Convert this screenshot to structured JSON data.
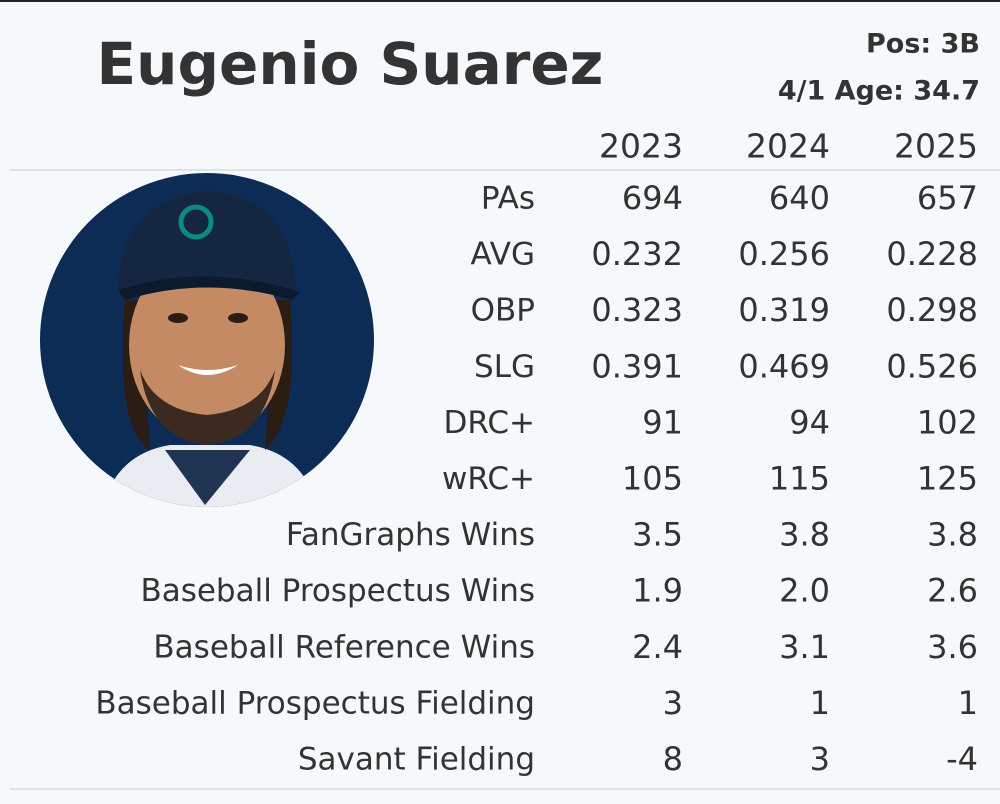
{
  "header": {
    "name": "Eugenio Suarez",
    "position": "Pos: 3B",
    "age": "4/1 Age: 34.7"
  },
  "table": {
    "columns": [
      "2023",
      "2024",
      "2025"
    ],
    "rows": [
      {
        "label": "PAs",
        "values": [
          "694",
          "640",
          "657"
        ]
      },
      {
        "label": "AVG",
        "values": [
          "0.232",
          "0.256",
          "0.228"
        ]
      },
      {
        "label": "OBP",
        "values": [
          "0.323",
          "0.319",
          "0.298"
        ]
      },
      {
        "label": "SLG",
        "values": [
          "0.391",
          "0.469",
          "0.526"
        ]
      },
      {
        "label": "DRC+",
        "values": [
          "91",
          "94",
          "102"
        ]
      },
      {
        "label": "wRC+",
        "values": [
          "105",
          "115",
          "125"
        ]
      },
      {
        "label": "FanGraphs Wins",
        "values": [
          "3.5",
          "3.8",
          "3.8"
        ]
      },
      {
        "label": "Baseball Prospectus Wins",
        "values": [
          "1.9",
          "2.0",
          "2.6"
        ]
      },
      {
        "label": "Baseball Reference Wins",
        "values": [
          "2.4",
          "3.1",
          "3.6"
        ]
      },
      {
        "label": "Baseball Prospectus Fielding",
        "values": [
          "3",
          "1",
          "1"
        ]
      },
      {
        "label": "Savant Fielding",
        "values": [
          "8",
          "3",
          "-4"
        ]
      }
    ]
  }
}
